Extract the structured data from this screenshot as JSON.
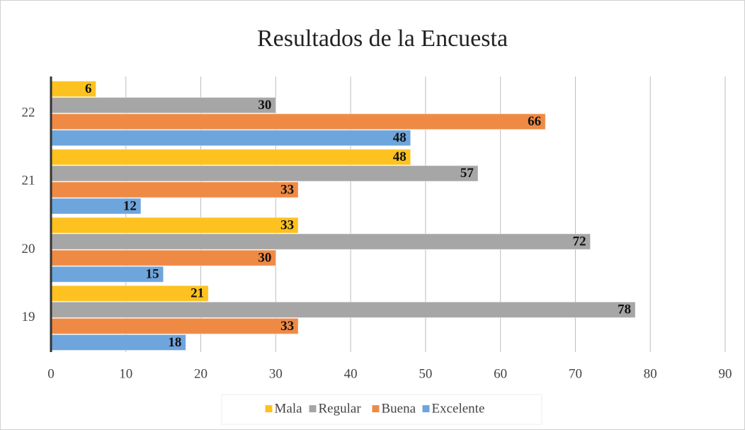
{
  "chart_data": {
    "type": "bar",
    "orientation": "horizontal",
    "title": "Resultados de la Encuesta",
    "categories": [
      "19",
      "20",
      "21",
      "22"
    ],
    "series": [
      {
        "name": "Mala",
        "color": "#fdc21f",
        "values": [
          21,
          33,
          48,
          6
        ]
      },
      {
        "name": "Regular",
        "color": "#a6a6a6",
        "values": [
          78,
          72,
          57,
          30
        ]
      },
      {
        "name": "Buena",
        "color": "#ef8a45",
        "values": [
          33,
          30,
          33,
          66
        ]
      },
      {
        "name": "Excelente",
        "color": "#6ea5dc",
        "values": [
          18,
          15,
          12,
          48
        ]
      }
    ],
    "xlim": [
      0,
      90
    ],
    "xticks": [
      0,
      10,
      20,
      30,
      40,
      50,
      60,
      70,
      80,
      90
    ],
    "grid": true,
    "legend": "bottom"
  }
}
